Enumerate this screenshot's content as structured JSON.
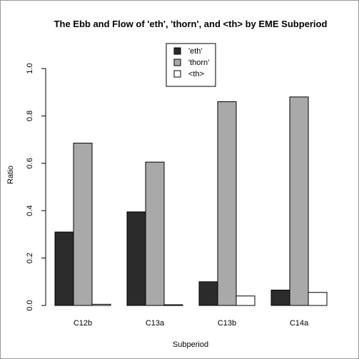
{
  "chart_data": {
    "type": "bar",
    "title": "The Ebb and Flow of 'eth', 'thorn', and <th> by EME Subperiod",
    "xlabel": "Subperiod",
    "ylabel": "Ratio",
    "categories": [
      "C12b",
      "C13a",
      "C13b",
      "C14a"
    ],
    "series": [
      {
        "name": "'eth'",
        "color": "#2b2b2b",
        "values": [
          0.31,
          0.395,
          0.1,
          0.065
        ]
      },
      {
        "name": "'thorn'",
        "color": "#a9a9a9",
        "values": [
          0.685,
          0.605,
          0.86,
          0.88
        ]
      },
      {
        "name": "<th>",
        "color": "#ffffff",
        "values": [
          0.005,
          0.003,
          0.04,
          0.055
        ]
      }
    ],
    "ylim": [
      0,
      1.0
    ],
    "yticks": [
      "0.0",
      "0.2",
      "0.4",
      "0.6",
      "0.8",
      "1.0"
    ],
    "grid": false,
    "legend_position": "top-center"
  }
}
